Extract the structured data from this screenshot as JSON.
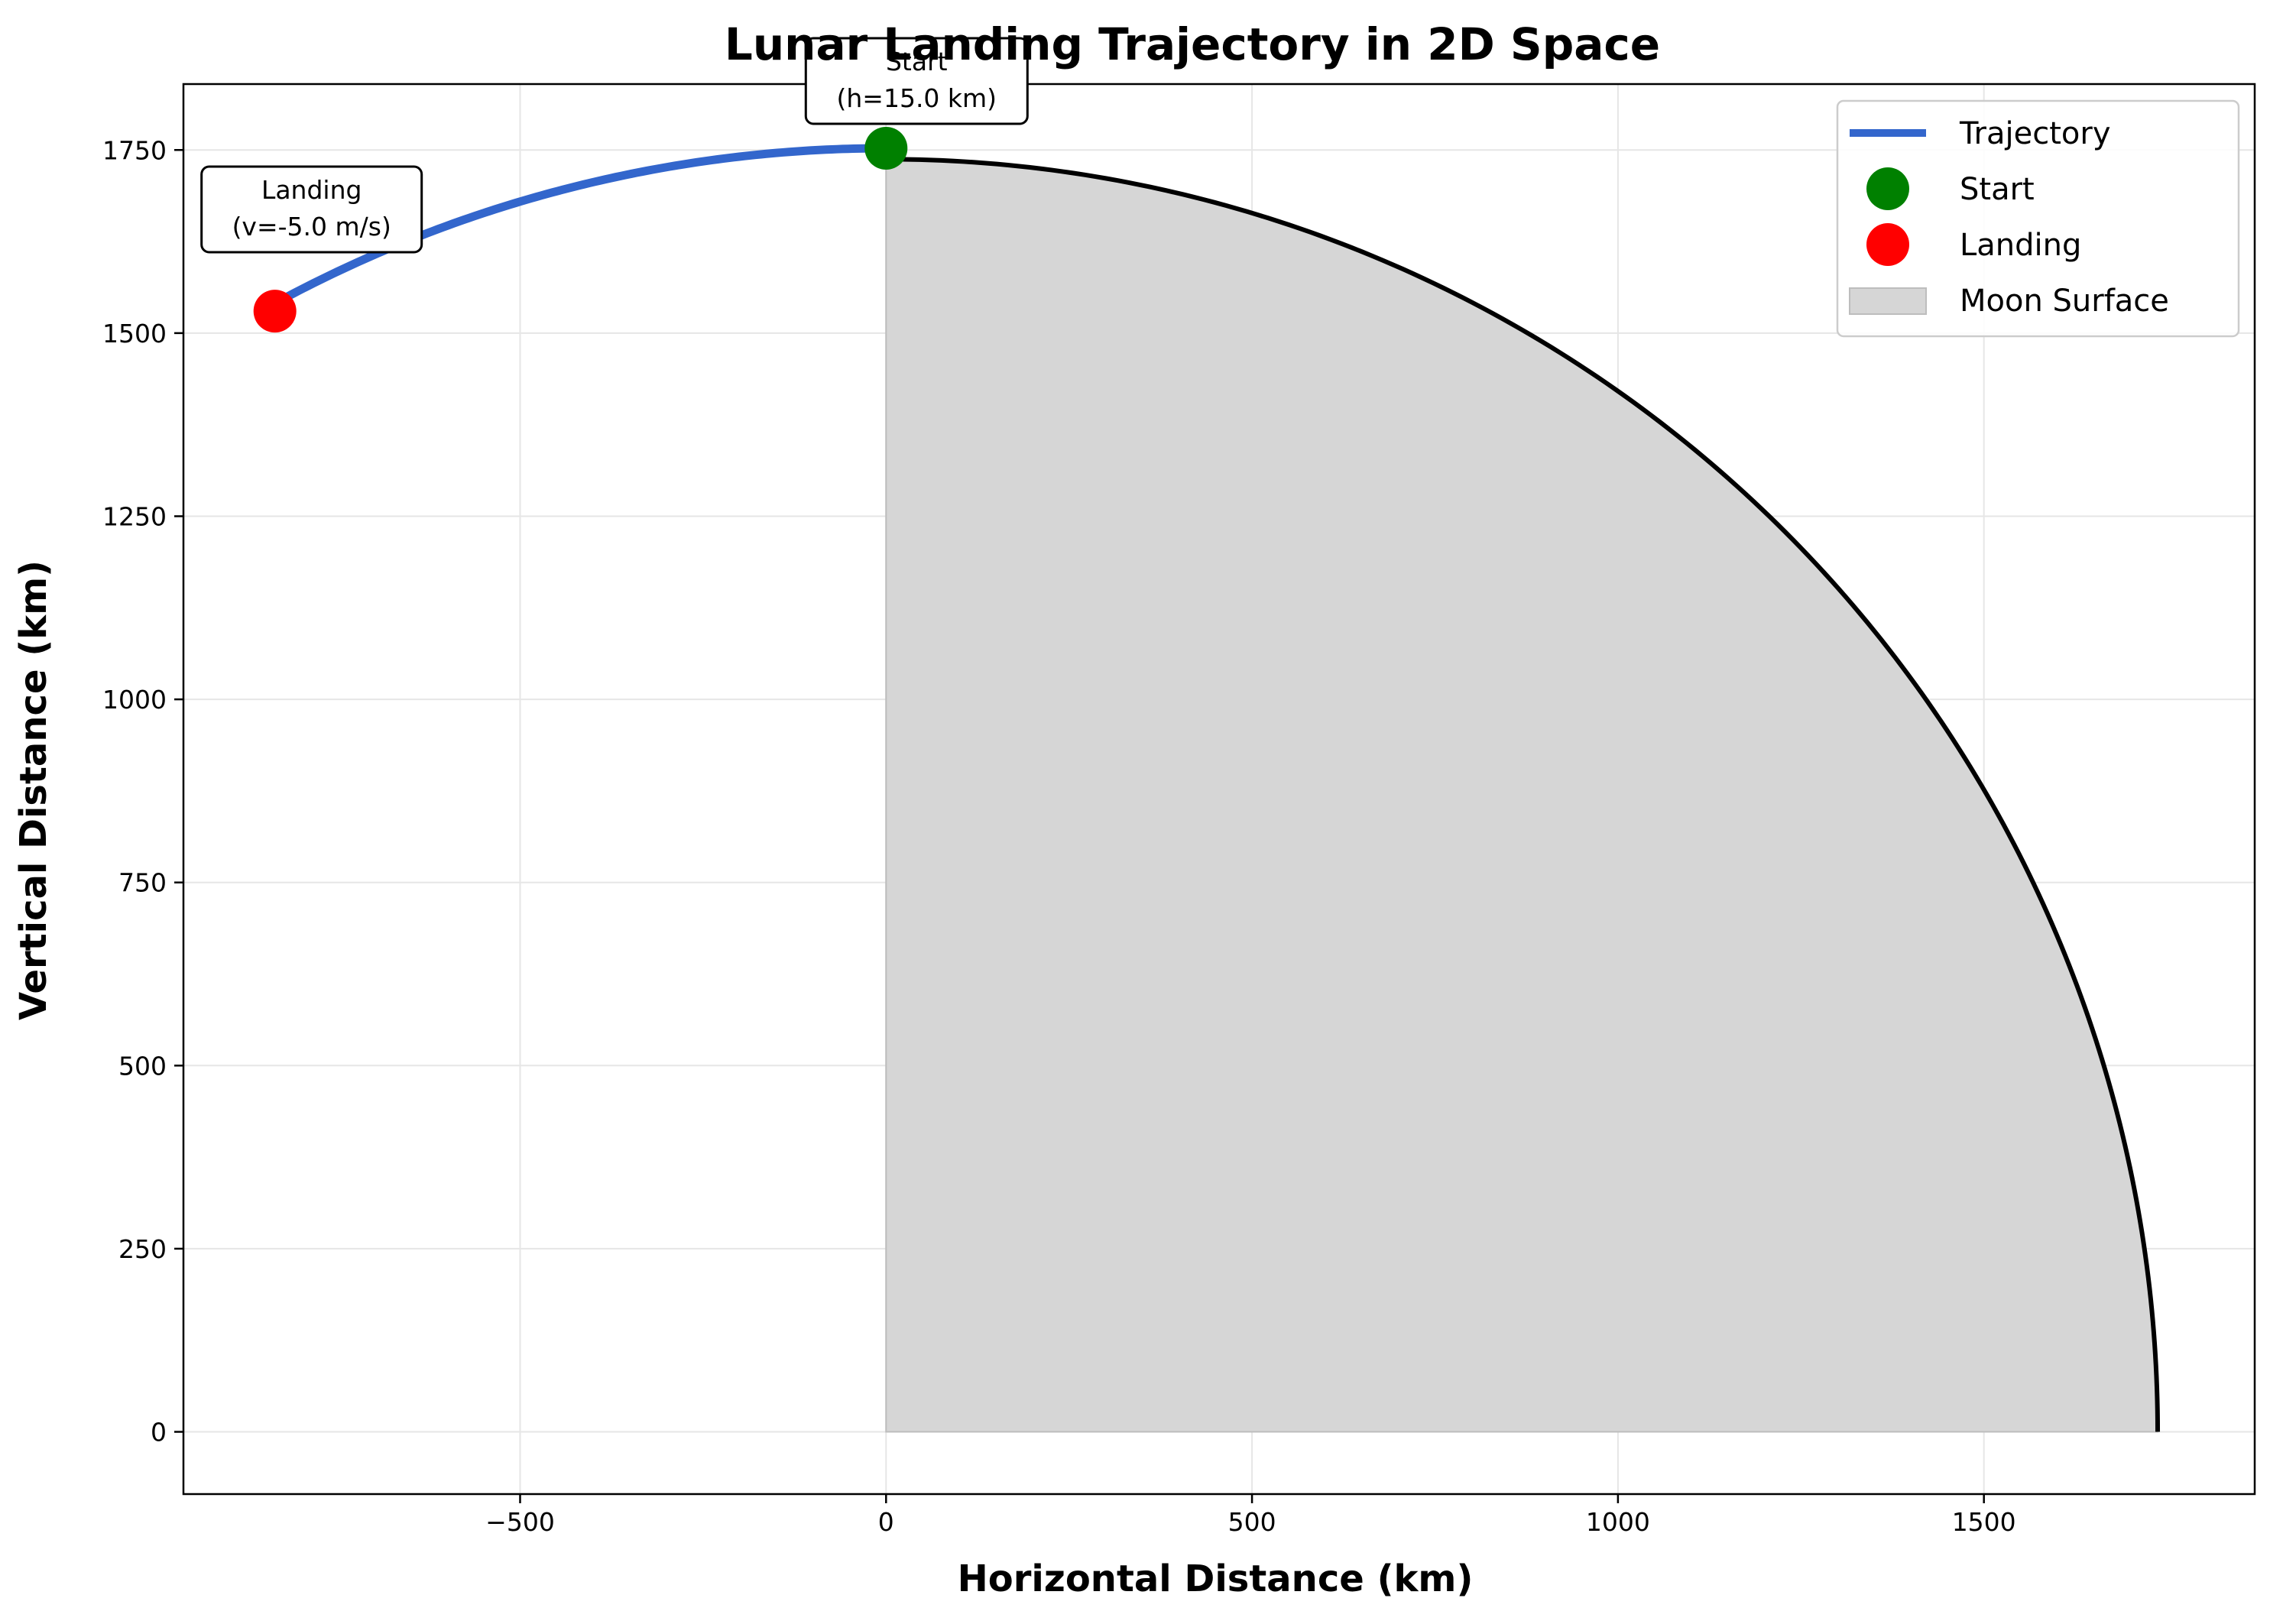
{
  "chart_data": {
    "type": "line",
    "title": "Lunar Landing Trajectory in 2D Space",
    "xlabel": "Horizontal Distance (km)",
    "ylabel": "Vertical Distance (km)",
    "xlim": [
      -960,
      1870
    ],
    "ylim": [
      -85,
      1840
    ],
    "xticks": [
      -500,
      0,
      500,
      1000,
      1500
    ],
    "xtick_labels": [
      "−500",
      "0",
      "500",
      "1000",
      "1500"
    ],
    "yticks": [
      0,
      250,
      500,
      750,
      1000,
      1250,
      1500,
      1750
    ],
    "ytick_labels": [
      "0",
      "250",
      "500",
      "750",
      "1000",
      "1250",
      "1500",
      "1750"
    ],
    "grid": true,
    "legend_position": "top-right",
    "moon_radius_km": 1737.4,
    "trajectory": {
      "name": "Trajectory",
      "color": "#3366cc",
      "radius_km": 1752.4,
      "start_angle_deg": 90,
      "end_angle_deg": 119.2,
      "points": [
        [
          0,
          1752.4
        ],
        [
          -224,
          1738
        ],
        [
          -448,
          1694
        ],
        [
          -650,
          1627
        ],
        [
          -835,
          1530
        ]
      ]
    },
    "start_point": {
      "name": "Start",
      "x": 0,
      "y": 1752.4,
      "color": "#008000"
    },
    "landing_point": {
      "name": "Landing",
      "x": -835,
      "y": 1530,
      "color": "#ff0000"
    },
    "moon_surface": {
      "name": "Moon Surface",
      "fill": "#d6d6d6",
      "outline": "#000000"
    },
    "annotations": [
      {
        "id": "start",
        "lines": [
          "Start",
          "(h=15.0 km)"
        ]
      },
      {
        "id": "landing",
        "lines": [
          "Landing",
          "(v=-5.0 m/s)"
        ]
      }
    ],
    "legend": [
      "Trajectory",
      "Start",
      "Landing",
      "Moon Surface"
    ]
  }
}
